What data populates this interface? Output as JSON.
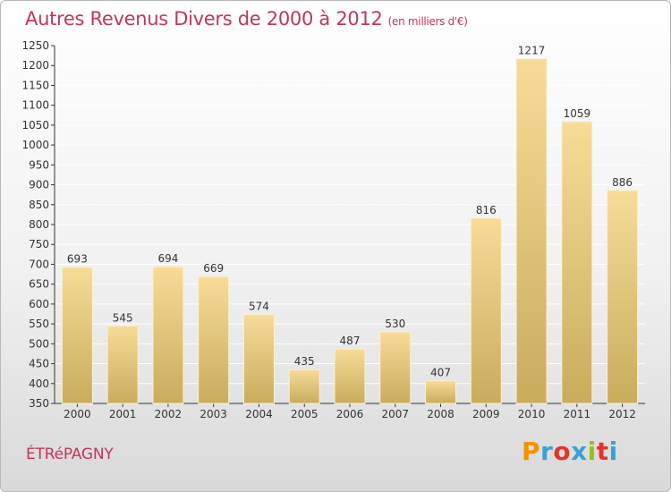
{
  "header": {
    "title": "Autres Revenus Divers de 2000 à 2012",
    "subtitle": "(en milliers d'€)"
  },
  "footer": {
    "location": "ÉTRéPAGNY"
  },
  "brand": {
    "letters": [
      "P",
      "r",
      "o",
      "x",
      "i",
      "t",
      "i"
    ],
    "colors": [
      "#f39200",
      "#3aa0d9",
      "#e6332a",
      "#3aa0d9",
      "#95c11f",
      "#e6332a",
      "#3aa0d9"
    ]
  },
  "colors": {
    "title": "#c2365a",
    "bar_top": "#f6dc98",
    "bar_bottom": "#c9ac5c",
    "axis": "#333333",
    "grid": "#ffffff"
  },
  "chart_data": {
    "type": "bar",
    "title": "Autres Revenus Divers de 2000 à 2012",
    "subtitle": "(en milliers d'€)",
    "categories": [
      "2000",
      "2001",
      "2002",
      "2003",
      "2004",
      "2005",
      "2006",
      "2007",
      "2008",
      "2009",
      "2010",
      "2011",
      "2012"
    ],
    "values": [
      693,
      545,
      694,
      669,
      574,
      435,
      487,
      530,
      407,
      816,
      1217,
      1059,
      886
    ],
    "ylim": [
      350,
      1250
    ],
    "yticks": [
      350,
      400,
      450,
      500,
      550,
      600,
      650,
      700,
      750,
      800,
      850,
      900,
      950,
      1000,
      1050,
      1100,
      1150,
      1200,
      1250
    ],
    "grid": true,
    "legend": false
  }
}
